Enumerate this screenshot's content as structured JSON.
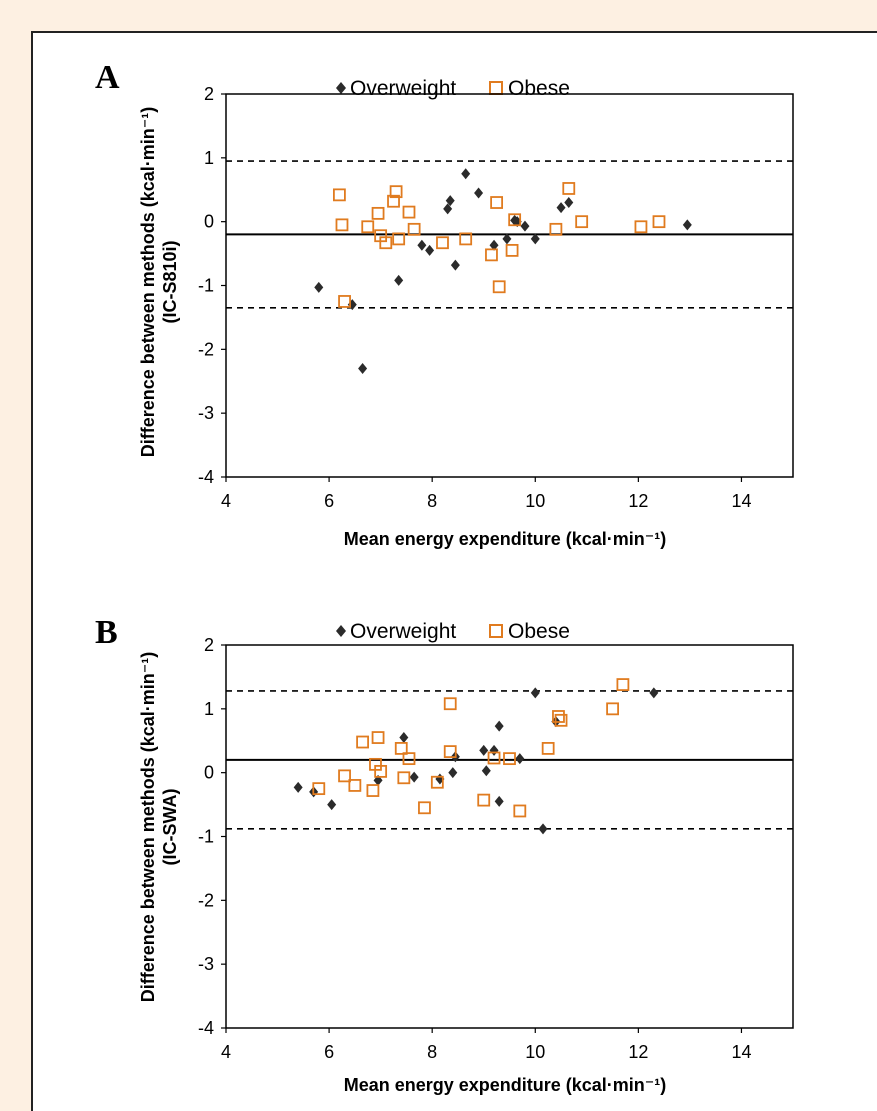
{
  "colors": {
    "overweight": "#2b2b2b",
    "obese": "#e07b1f"
  },
  "chart_data": [
    {
      "type": "scatter",
      "panel_label": "A",
      "xlabel": "Mean energy expenditure (kcal·min⁻¹)",
      "ylabel": "Difference between methods (kcal·min⁻¹)",
      "ylabel2": "(IC-S810i)",
      "xlim": [
        4,
        15
      ],
      "ylim": [
        -4,
        2
      ],
      "xticks": [
        "4",
        "6",
        "8",
        "10",
        "12",
        "14"
      ],
      "yticks": [
        "-4",
        "-3",
        "-2",
        "-1",
        "0",
        "1",
        "2"
      ],
      "legend": [
        "Overweight",
        "Obese"
      ],
      "legend_position": "top",
      "mean_line": -0.2,
      "limits": [
        0.95,
        -1.35
      ],
      "series": [
        {
          "name": "Overweight",
          "marker": "diamond",
          "points": [
            [
              5.8,
              -1.03
            ],
            [
              6.45,
              -1.3
            ],
            [
              6.65,
              -2.3
            ],
            [
              7.35,
              -0.92
            ],
            [
              7.8,
              -0.37
            ],
            [
              7.95,
              -0.45
            ],
            [
              8.3,
              0.2
            ],
            [
              8.35,
              0.33
            ],
            [
              8.45,
              -0.68
            ],
            [
              8.65,
              0.75
            ],
            [
              8.9,
              0.45
            ],
            [
              9.2,
              -0.37
            ],
            [
              9.45,
              -0.27
            ],
            [
              9.6,
              0.02
            ],
            [
              9.65,
              0.0
            ],
            [
              9.8,
              -0.07
            ],
            [
              10.0,
              -0.27
            ],
            [
              10.5,
              0.22
            ],
            [
              10.65,
              0.3
            ],
            [
              12.95,
              -0.05
            ]
          ]
        },
        {
          "name": "Obese",
          "marker": "square",
          "points": [
            [
              6.2,
              0.42
            ],
            [
              6.25,
              -0.05
            ],
            [
              6.3,
              -1.25
            ],
            [
              6.75,
              -0.08
            ],
            [
              6.95,
              0.13
            ],
            [
              7.0,
              -0.22
            ],
            [
              7.1,
              -0.33
            ],
            [
              7.25,
              0.32
            ],
            [
              7.3,
              0.47
            ],
            [
              7.35,
              -0.27
            ],
            [
              7.55,
              0.15
            ],
            [
              7.65,
              -0.12
            ],
            [
              8.2,
              -0.33
            ],
            [
              8.65,
              -0.27
            ],
            [
              9.15,
              -0.52
            ],
            [
              9.25,
              0.3
            ],
            [
              9.3,
              -1.02
            ],
            [
              9.55,
              -0.45
            ],
            [
              9.6,
              0.03
            ],
            [
              10.4,
              -0.12
            ],
            [
              10.65,
              0.52
            ],
            [
              10.9,
              0.0
            ],
            [
              12.05,
              -0.08
            ],
            [
              12.4,
              0.0
            ]
          ]
        }
      ]
    },
    {
      "type": "scatter",
      "panel_label": "B",
      "xlabel": "Mean energy expenditure (kcal·min⁻¹)",
      "ylabel": "Difference between methods (kcal·min⁻¹)",
      "ylabel2": "(IC-SWA)",
      "xlim": [
        4,
        15
      ],
      "ylim": [
        -4,
        2
      ],
      "xticks": [
        "4",
        "6",
        "8",
        "10",
        "12",
        "14"
      ],
      "yticks": [
        "-4",
        "-3",
        "-2",
        "-1",
        "0",
        "1",
        "2"
      ],
      "legend": [
        "Overweight",
        "Obese"
      ],
      "legend_position": "top",
      "mean_line": 0.2,
      "limits": [
        1.28,
        -0.88
      ],
      "series": [
        {
          "name": "Overweight",
          "marker": "diamond",
          "points": [
            [
              5.4,
              -0.23
            ],
            [
              5.7,
              -0.3
            ],
            [
              6.05,
              -0.5
            ],
            [
              6.95,
              -0.12
            ],
            [
              7.45,
              0.55
            ],
            [
              7.65,
              -0.07
            ],
            [
              8.15,
              -0.1
            ],
            [
              8.4,
              0.0
            ],
            [
              8.45,
              0.25
            ],
            [
              9.0,
              0.35
            ],
            [
              9.05,
              0.03
            ],
            [
              9.2,
              0.35
            ],
            [
              9.3,
              0.73
            ],
            [
              9.3,
              -0.45
            ],
            [
              9.7,
              0.22
            ],
            [
              10.0,
              1.25
            ],
            [
              10.15,
              -0.88
            ],
            [
              10.4,
              0.8
            ],
            [
              12.3,
              1.25
            ]
          ]
        },
        {
          "name": "Obese",
          "marker": "square",
          "points": [
            [
              5.8,
              -0.25
            ],
            [
              6.3,
              -0.05
            ],
            [
              6.5,
              -0.2
            ],
            [
              6.65,
              0.48
            ],
            [
              6.85,
              -0.28
            ],
            [
              6.9,
              0.13
            ],
            [
              6.95,
              0.55
            ],
            [
              7.0,
              0.02
            ],
            [
              7.4,
              0.38
            ],
            [
              7.45,
              -0.08
            ],
            [
              7.55,
              0.22
            ],
            [
              7.85,
              -0.55
            ],
            [
              8.1,
              -0.15
            ],
            [
              8.35,
              1.08
            ],
            [
              8.35,
              0.33
            ],
            [
              9.0,
              -0.43
            ],
            [
              9.2,
              0.23
            ],
            [
              9.5,
              0.22
            ],
            [
              9.7,
              -0.6
            ],
            [
              10.25,
              0.38
            ],
            [
              10.45,
              0.88
            ],
            [
              10.5,
              0.82
            ],
            [
              11.5,
              1.0
            ],
            [
              11.7,
              1.38
            ]
          ]
        }
      ]
    }
  ]
}
